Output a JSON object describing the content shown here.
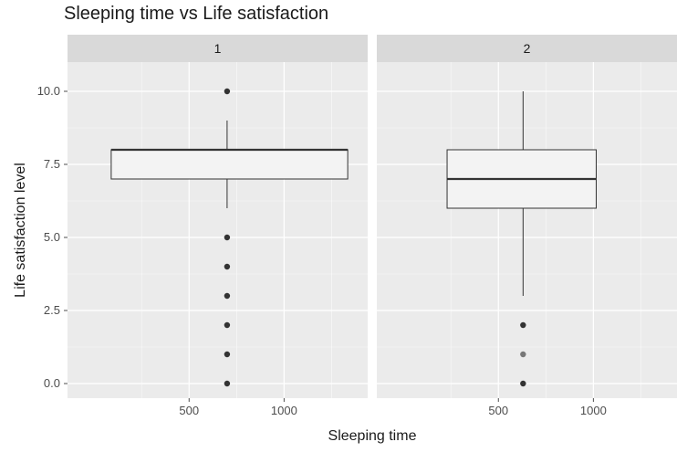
{
  "chart_data": {
    "type": "boxplot",
    "title": "Sleeping time vs Life satisfaction",
    "xlabel": "Sleeping time",
    "ylabel": "Life satisfaction level",
    "grid": true,
    "xlim": [
      -140,
      1440
    ],
    "ylim": [
      -0.5,
      11
    ],
    "x_ticks": [
      500,
      1000
    ],
    "y_ticks": [
      0.0,
      2.5,
      5.0,
      7.5,
      10.0
    ],
    "x_tick_labels": [
      "500",
      "1000"
    ],
    "y_tick_labels": [
      "0.0",
      "2.5",
      "5.0",
      "7.5",
      "10.0"
    ],
    "panels": [
      {
        "label": "1",
        "box": {
          "x_min": 90,
          "x_max": 1335,
          "x_center": 700,
          "q1": 7,
          "median": 8,
          "q3": 8,
          "whisker_low": 6,
          "whisker_high": 9
        },
        "outliers": [
          0,
          1,
          2,
          3,
          4,
          5,
          10
        ]
      },
      {
        "label": "2",
        "box": {
          "x_min": 230,
          "x_max": 1015,
          "x_center": 630,
          "q1": 6,
          "median": 7,
          "q3": 8,
          "whisker_low": 3,
          "whisker_high": 10
        },
        "outliers": [
          0,
          1,
          2
        ]
      }
    ]
  },
  "colors": {
    "panel_bg": "#ebebeb",
    "strip_bg": "#d9d9d9",
    "grid_major": "#ffffff",
    "box_fill": "#f3f3f3",
    "stroke": "#333333",
    "text": "#1a1a1a",
    "tick_text": "#4d4d4d"
  }
}
